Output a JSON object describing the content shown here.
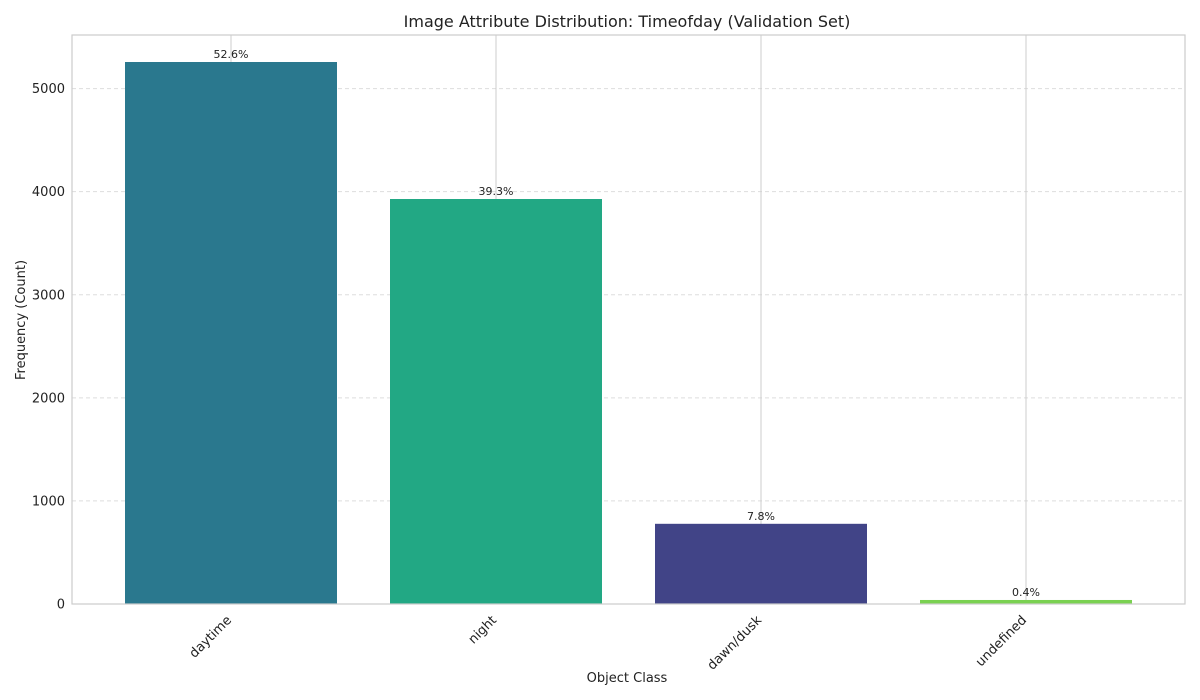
{
  "chart_data": {
    "type": "bar",
    "title": "Image Attribute Distribution: Timeofday (Validation Set)",
    "xlabel": "Object Class",
    "ylabel": "Frequency (Count)",
    "categories": [
      "daytime",
      "night",
      "dawn/dusk",
      "undefined"
    ],
    "values": [
      5258,
      3929,
      778,
      39
    ],
    "data_labels": [
      "52.6%",
      "39.3%",
      "7.8%",
      "0.4%"
    ],
    "colors": [
      "#2a788e",
      "#22a884",
      "#414487",
      "#7ad151"
    ],
    "ylim": [
      0,
      5520
    ],
    "yticks": [
      0,
      1000,
      2000,
      3000,
      4000,
      5000
    ],
    "grid": true,
    "legend": "none"
  }
}
